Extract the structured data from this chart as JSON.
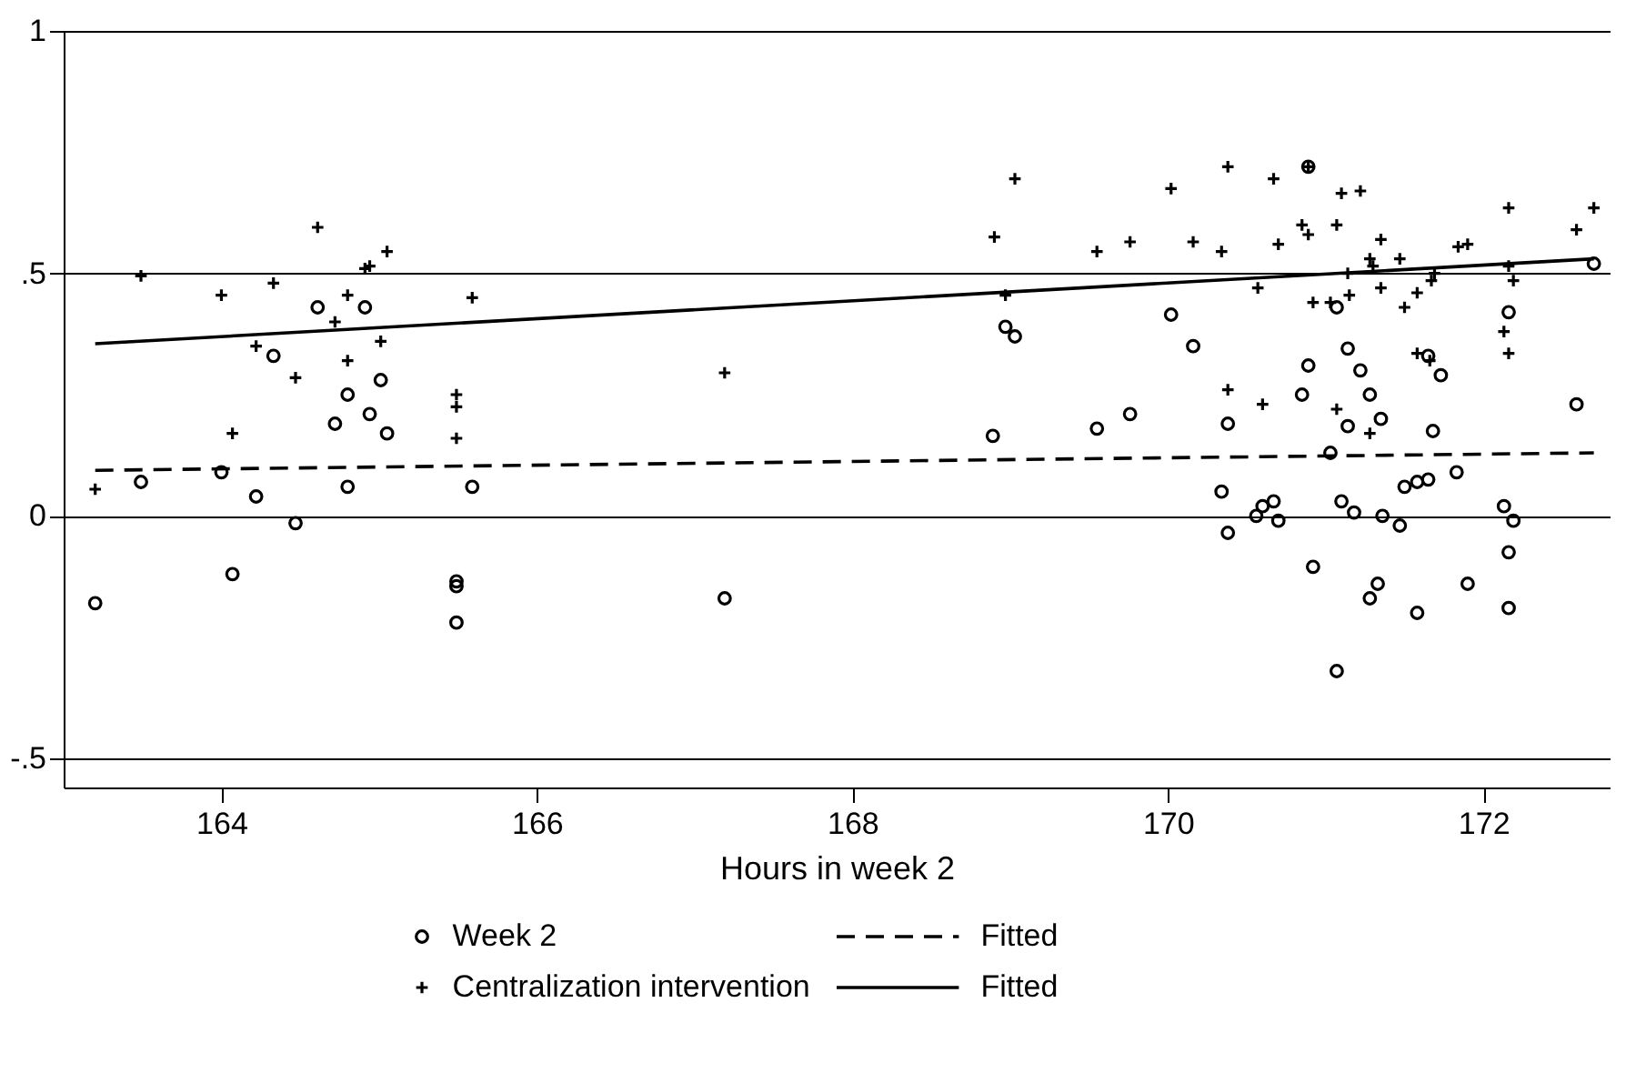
{
  "chart_data": {
    "type": "scatter",
    "xlabel": "Hours in week 2",
    "xlim": [
      163.0,
      172.8
    ],
    "xticks": [
      164,
      166,
      168,
      170,
      172
    ],
    "ylim": [
      -0.56,
      1.0
    ],
    "yticks": [
      {
        "value": -0.5,
        "label": "-.5"
      },
      {
        "value": 0,
        "label": "0"
      },
      {
        "value": 0.5,
        "label": ".5"
      },
      {
        "value": 1,
        "label": "1"
      }
    ],
    "grid": "y",
    "legend": "bottom",
    "series": [
      {
        "name": "Week 2",
        "marker": "circle",
        "color": "#000000",
        "x": [
          163.2,
          163.49,
          164.0,
          164.07,
          164.22,
          164.33,
          164.47,
          164.61,
          164.72,
          164.8,
          164.8,
          164.91,
          164.94,
          165.01,
          165.05,
          165.49,
          165.49,
          165.49,
          165.59,
          167.19,
          168.89,
          168.97,
          169.03,
          169.55,
          169.76,
          170.02,
          170.16,
          170.34,
          170.38,
          170.38,
          170.56,
          170.6,
          170.67,
          170.7,
          170.85,
          170.89,
          170.89,
          170.92,
          171.03,
          171.07,
          171.07,
          171.1,
          171.14,
          171.14,
          171.18,
          171.22,
          171.28,
          171.28,
          171.33,
          171.35,
          171.36,
          171.47,
          171.5,
          171.58,
          171.58,
          171.65,
          171.65,
          171.68,
          171.73,
          171.83,
          171.9,
          172.13,
          172.16,
          172.16,
          172.16,
          172.19,
          172.59,
          172.7
        ],
        "values": [
          -0.18,
          0.07,
          0.09,
          -0.12,
          0.04,
          0.33,
          -0.015,
          0.43,
          0.19,
          0.25,
          0.06,
          0.43,
          0.21,
          0.28,
          0.17,
          -0.135,
          -0.145,
          -0.22,
          0.06,
          -0.17,
          0.165,
          0.39,
          0.37,
          0.18,
          0.21,
          0.415,
          0.35,
          0.05,
          0.19,
          -0.035,
          0.0,
          0.02,
          0.03,
          -0.01,
          0.25,
          0.31,
          0.72,
          -0.105,
          0.13,
          0.43,
          -0.32,
          0.03,
          0.345,
          0.185,
          0.007,
          0.3,
          0.25,
          -0.17,
          -0.14,
          0.2,
          0.0,
          -0.02,
          0.06,
          0.07,
          -0.2,
          0.075,
          0.33,
          0.175,
          0.29,
          0.09,
          -0.14,
          0.02,
          0.42,
          -0.075,
          -0.19,
          -0.01,
          0.23,
          0.52
        ]
      },
      {
        "name": "Centralization intervention",
        "marker": "cross",
        "color": "#000000",
        "x": [
          163.2,
          163.49,
          164.0,
          164.07,
          164.22,
          164.33,
          164.47,
          164.61,
          164.72,
          164.8,
          164.8,
          164.91,
          164.94,
          165.01,
          165.05,
          165.49,
          165.49,
          165.49,
          165.59,
          167.19,
          168.9,
          168.97,
          169.03,
          169.55,
          169.76,
          170.02,
          170.16,
          170.34,
          170.38,
          170.38,
          170.57,
          170.6,
          170.67,
          170.7,
          170.85,
          170.89,
          170.89,
          170.92,
          171.03,
          171.07,
          171.07,
          171.1,
          171.14,
          171.15,
          171.22,
          171.28,
          171.28,
          171.3,
          171.35,
          171.35,
          171.47,
          171.5,
          171.58,
          171.58,
          171.66,
          171.67,
          171.69,
          171.84,
          171.9,
          172.13,
          172.16,
          172.16,
          172.16,
          172.19,
          172.59,
          172.7
        ],
        "values": [
          0.055,
          0.495,
          0.455,
          0.17,
          0.35,
          0.48,
          0.285,
          0.595,
          0.4,
          0.455,
          0.32,
          0.51,
          0.515,
          0.36,
          0.545,
          0.25,
          0.225,
          0.16,
          0.45,
          0.295,
          0.575,
          0.455,
          0.695,
          0.545,
          0.565,
          0.675,
          0.565,
          0.545,
          0.72,
          0.26,
          0.47,
          0.23,
          0.695,
          0.56,
          0.6,
          0.58,
          0.72,
          0.44,
          0.44,
          0.6,
          0.22,
          0.665,
          0.5,
          0.455,
          0.67,
          0.53,
          0.17,
          0.515,
          0.57,
          0.47,
          0.53,
          0.43,
          0.46,
          0.335,
          0.32,
          0.485,
          0.5,
          0.555,
          0.56,
          0.38,
          0.635,
          0.515,
          0.335,
          0.485,
          0.59,
          0.635
        ]
      },
      {
        "name": "Fitted",
        "type": "line",
        "line_style": "dashed",
        "color": "#000000",
        "x": [
          163.2,
          172.7
        ],
        "values": [
          0.094,
          0.13
        ]
      },
      {
        "name": "Fitted",
        "type": "line",
        "line_style": "solid",
        "color": "#000000",
        "x": [
          163.2,
          172.7
        ],
        "values": [
          0.355,
          0.53
        ]
      }
    ]
  }
}
